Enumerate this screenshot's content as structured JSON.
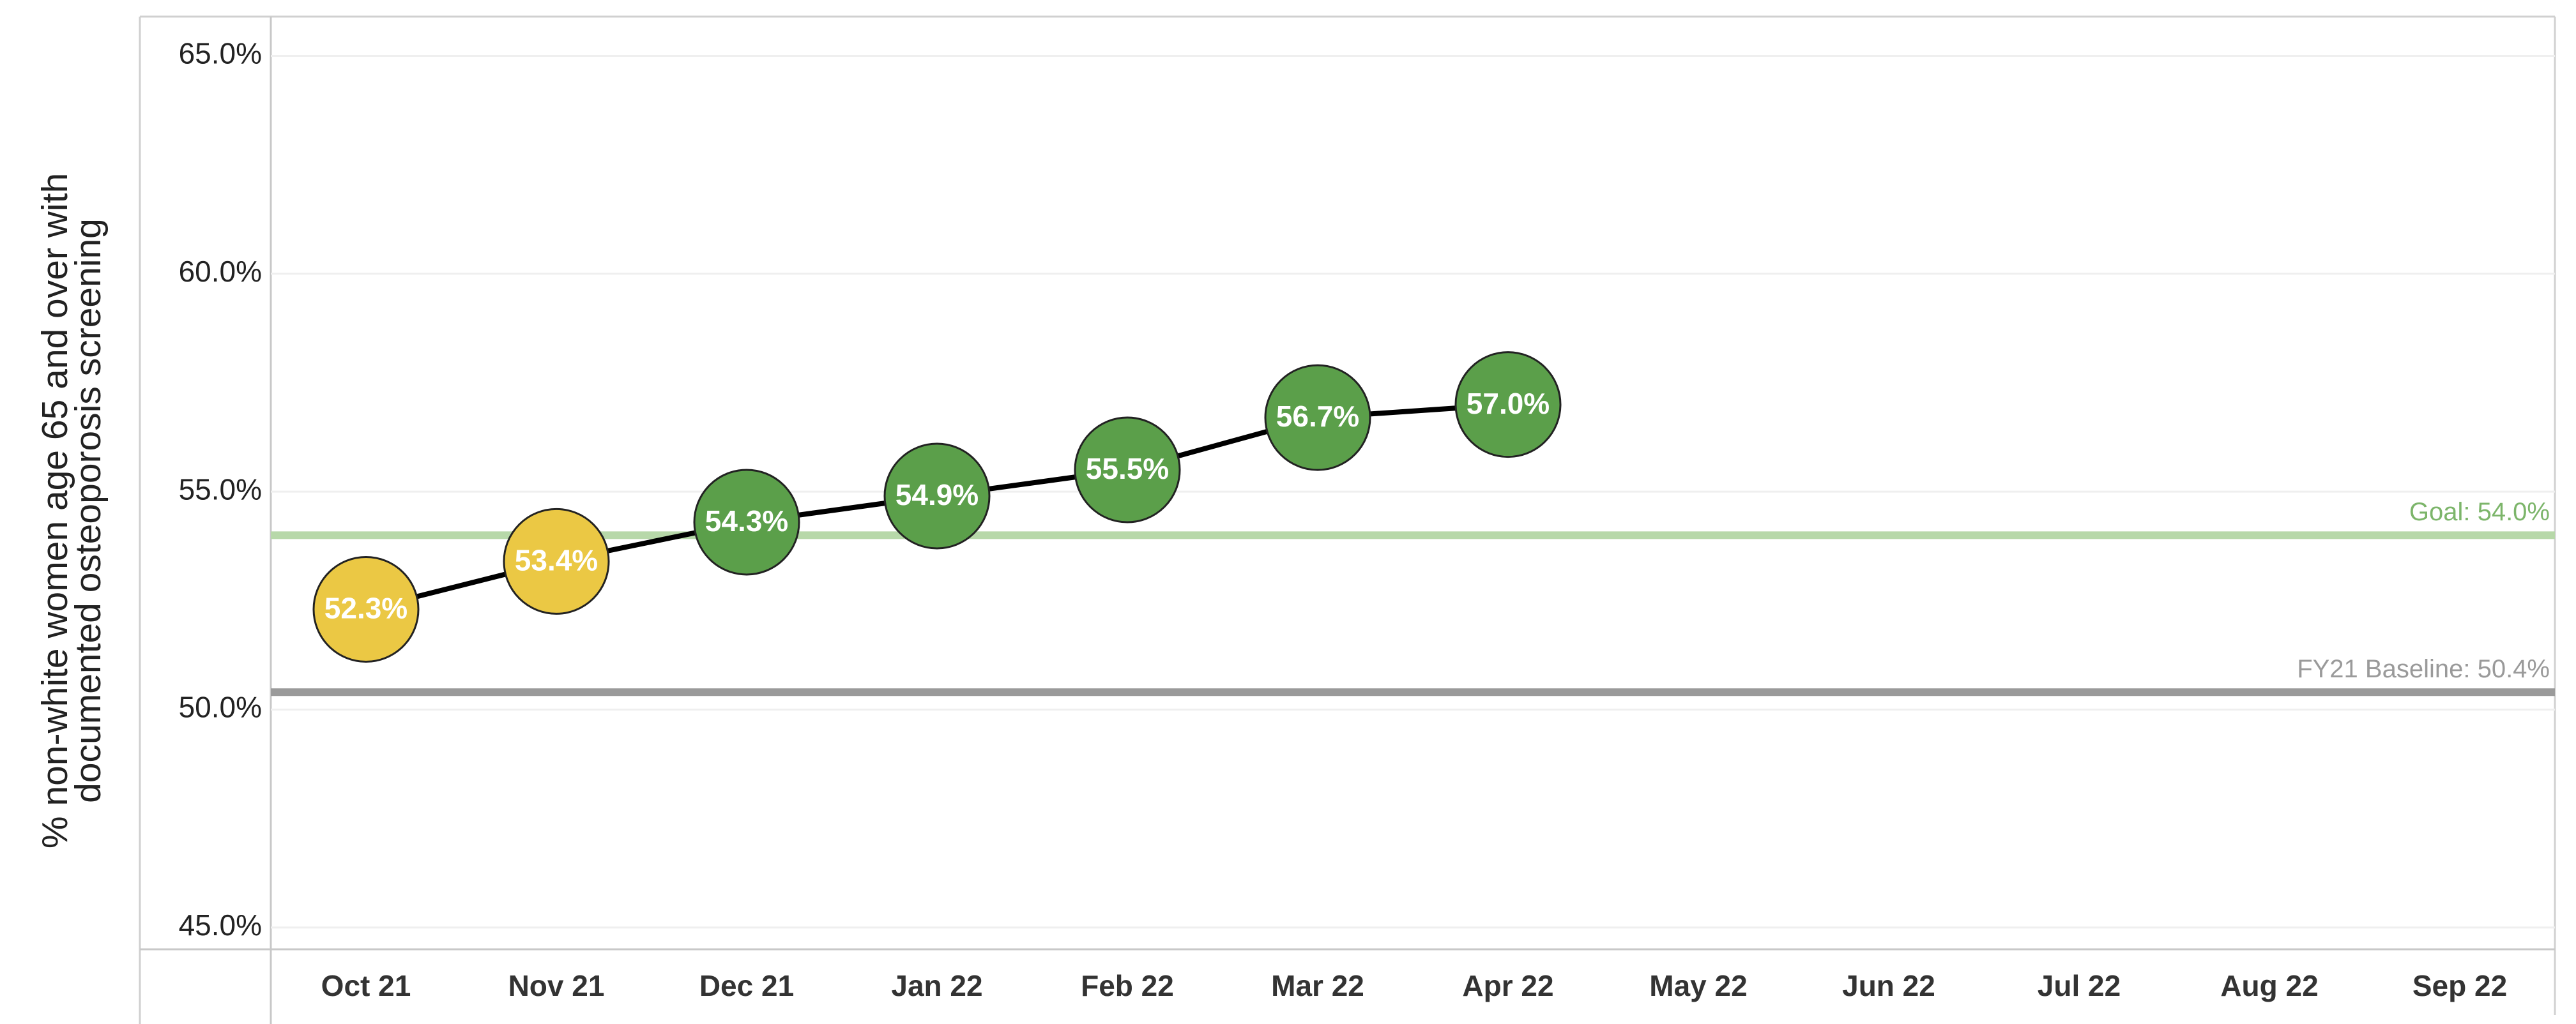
{
  "chart_data": {
    "type": "line",
    "y_label_lines": [
      "% non-white women age 65 and over with",
      "documented osteoporosis screening"
    ],
    "categories": [
      "Oct 21",
      "Nov 21",
      "Dec 21",
      "Jan 22",
      "Feb 22",
      "Mar 22",
      "Apr 22",
      "May 22",
      "Jun 22",
      "Jul 22",
      "Aug 22",
      "Sep 22"
    ],
    "series": [
      {
        "color": "#000000",
        "values": [
          52.3,
          53.4,
          54.3,
          54.9,
          55.5,
          56.7,
          57.0,
          null,
          null,
          null,
          null,
          null
        ],
        "value_labels": [
          "52.3%",
          "53.4%",
          "54.3%",
          "54.9%",
          "55.5%",
          "56.7%",
          "57.0%",
          null,
          null,
          null,
          null,
          null
        ],
        "point_colors": [
          "#ebc844",
          "#ebc844",
          "#5b9f4a",
          "#5b9f4a",
          "#5b9f4a",
          "#5b9f4a",
          "#5b9f4a",
          null,
          null,
          null,
          null,
          null
        ]
      }
    ],
    "reference_lines": [
      {
        "label": "Goal: 54.0%",
        "value": 54.0,
        "color": "#b7d8a9",
        "label_color": "#7cb56a"
      },
      {
        "label": "FY21 Baseline: 50.4%",
        "value": 50.4,
        "color": "#9a9a9a",
        "label_color": "#9a9a9a"
      }
    ],
    "ylim": [
      44.5,
      65.9
    ],
    "yticks": [
      {
        "value": 45,
        "label": "45.0%"
      },
      {
        "value": 50,
        "label": "50.0%"
      },
      {
        "value": 55,
        "label": "55.0%"
      },
      {
        "value": 60,
        "label": "60.0%"
      },
      {
        "value": 65,
        "label": "65.0%"
      }
    ],
    "grid": true
  }
}
